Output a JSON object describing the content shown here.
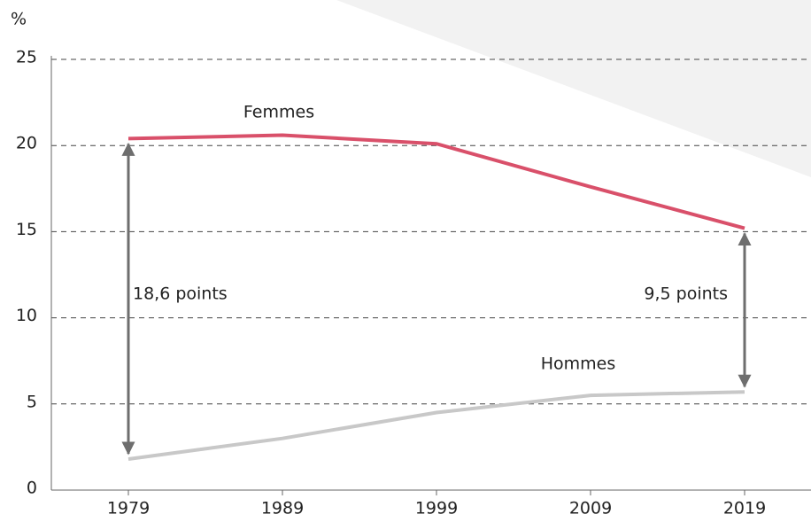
{
  "chart_data": {
    "type": "line",
    "y_label": "%",
    "categories": [
      "1979",
      "1989",
      "1999",
      "2009",
      "2019"
    ],
    "series": [
      {
        "name": "Femmes",
        "color": "#d9506a",
        "values": [
          20.4,
          20.6,
          20.1,
          17.6,
          15.2
        ]
      },
      {
        "name": "Hommes",
        "color": "#c8c8c8",
        "values": [
          1.8,
          3.0,
          4.5,
          5.5,
          5.7
        ]
      }
    ],
    "annotations": [
      "18,6 points",
      "9,5 points"
    ],
    "ylim": [
      0,
      25
    ],
    "yticks": [
      0,
      5,
      10,
      15,
      20,
      25
    ],
    "grid": true
  }
}
